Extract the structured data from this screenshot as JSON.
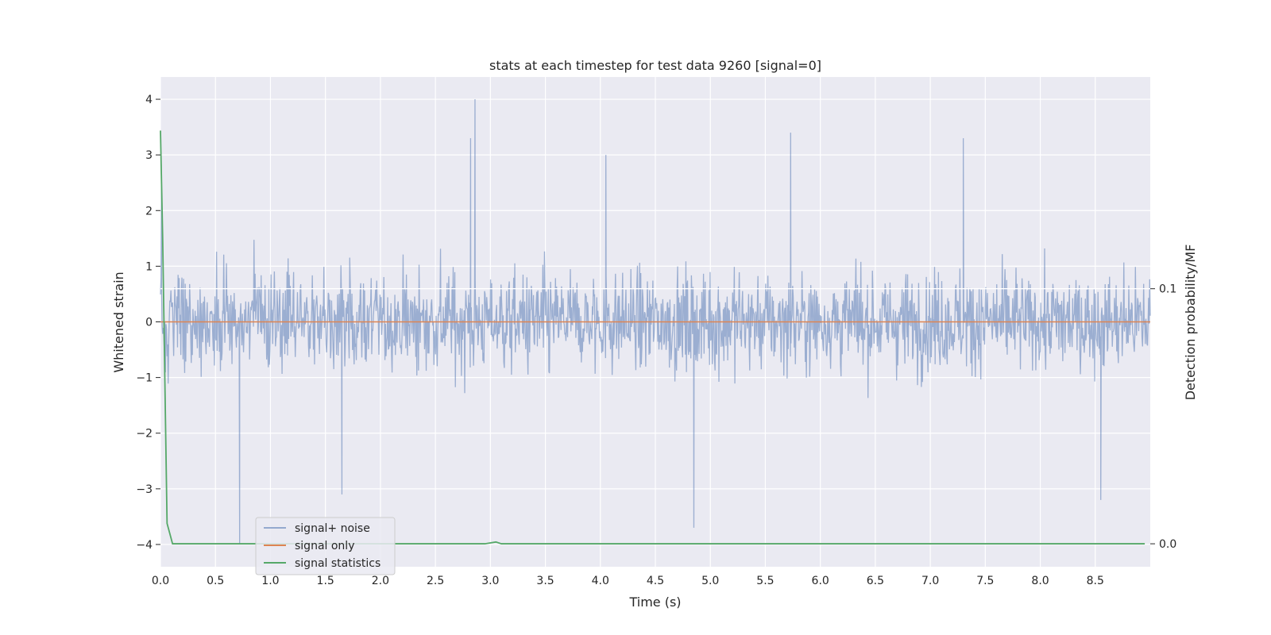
{
  "chart_data": {
    "type": "line",
    "title": "stats at each timestep for test data 9260 [signal=0]",
    "xlabel": "Time (s)",
    "ylabel": "Whitened strain",
    "y2label": "Detection probability/MF",
    "xlim": [
      0.0,
      9.0
    ],
    "ylim": [
      -4.4,
      4.4
    ],
    "y2lim": [
      -0.009,
      0.183
    ],
    "x_ticks": [
      "0.0",
      "0.5",
      "1.0",
      "1.5",
      "2.0",
      "2.5",
      "3.0",
      "3.5",
      "4.0",
      "4.5",
      "5.0",
      "5.5",
      "6.0",
      "6.5",
      "7.0",
      "7.5",
      "8.0",
      "8.5"
    ],
    "y_ticks": [
      "−4",
      "−3",
      "−2",
      "−1",
      "0",
      "1",
      "2",
      "3",
      "4"
    ],
    "y2_ticks": [
      "0.0",
      "0.1"
    ],
    "grid": true,
    "legend_position": "lower-left",
    "series": [
      {
        "name": "signal+ noise",
        "axis": "left",
        "color": "#4c72b0",
        "description_values": {
          "x_range": [
            0.0,
            9.0
          ],
          "amplitude_band": [
            -1.5,
            1.5
          ],
          "peaks": [
            [
              0.01,
              2.5
            ],
            [
              0.72,
              -4.0
            ],
            [
              1.65,
              -3.1
            ],
            [
              2.86,
              4.0
            ],
            [
              2.82,
              3.3
            ],
            [
              4.05,
              3.0
            ],
            [
              4.85,
              -3.7
            ],
            [
              5.73,
              3.4
            ],
            [
              7.3,
              3.3
            ],
            [
              8.55,
              -3.2
            ]
          ]
        }
      },
      {
        "name": "signal only",
        "axis": "left",
        "color": "#dd8452",
        "x": [
          0.0,
          9.0
        ],
        "y": [
          0.0,
          0.0
        ]
      },
      {
        "name": "signal statistics",
        "axis": "right",
        "color": "#55a868",
        "x": [
          0.0,
          0.02,
          0.06,
          0.11,
          0.5,
          1.0,
          2.0,
          2.95,
          3.05,
          3.1,
          4.0,
          5.0,
          6.0,
          7.0,
          8.0,
          8.95
        ],
        "y": [
          0.162,
          0.12,
          0.008,
          0.0,
          0.0,
          0.0,
          0.0,
          0.0,
          0.0007,
          0.0,
          0.0,
          0.0,
          0.0,
          0.0,
          0.0,
          0.0
        ]
      }
    ],
    "right_axis_hline": 0.1
  },
  "colors": {
    "plot_background": "#eaeaf2",
    "grid": "#ffffff",
    "noise": "#4c72b0",
    "signal": "#dd8452",
    "statistics": "#55a868"
  }
}
